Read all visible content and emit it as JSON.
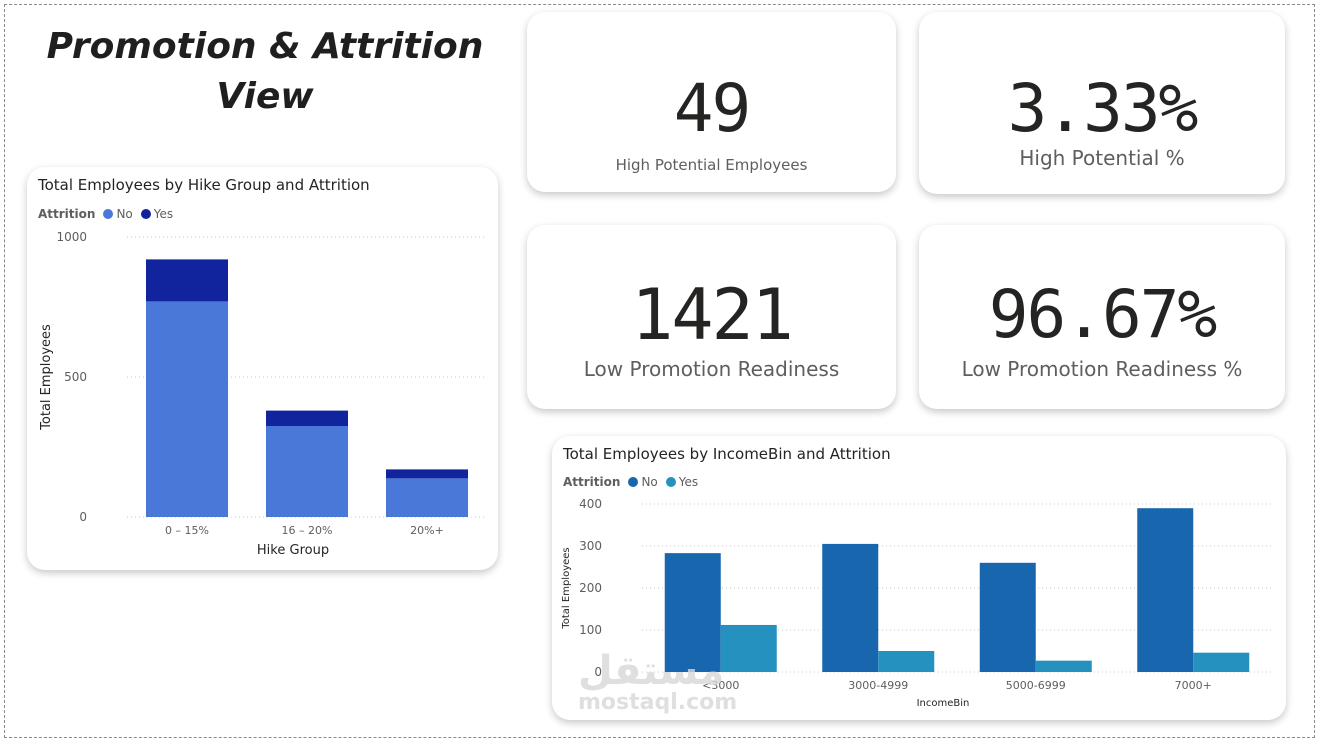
{
  "page": {
    "title_line1": "Promotion & Attrition",
    "title_line2": "View"
  },
  "kpis": [
    {
      "value": "49",
      "label": "High Potential Employees"
    },
    {
      "value": "3.33%",
      "label": "High Potential %"
    },
    {
      "value": "1421",
      "label": "Low Promotion Readiness"
    },
    {
      "value": "96.67%",
      "label": "Low Promotion Readiness %"
    }
  ],
  "hike_chart": {
    "title": "Total Employees by Hike Group and Attrition",
    "legend_title": "Attrition",
    "legend": [
      {
        "name": "No",
        "color": "#4a78d8"
      },
      {
        "name": "Yes",
        "color": "#12239e"
      }
    ]
  },
  "income_chart": {
    "title": "Total Employees by IncomeBin and Attrition",
    "legend_title": "Attrition",
    "legend": [
      {
        "name": "No",
        "color": "#1866ae"
      },
      {
        "name": "Yes",
        "color": "#2591bf"
      }
    ]
  },
  "watermark": {
    "arabic": "مستقل",
    "latin": "mostaql.com"
  },
  "chart_data": [
    {
      "type": "bar",
      "stacked": true,
      "title": "Total Employees by Hike Group and Attrition",
      "xlabel": "Hike Group",
      "ylabel": "Total Employees",
      "categories": [
        "0 – 15%",
        "16 – 20%",
        "20%+"
      ],
      "series": [
        {
          "name": "No",
          "values": [
            770,
            325,
            138
          ],
          "color": "#4a78d8"
        },
        {
          "name": "Yes",
          "values": [
            150,
            55,
            32
          ],
          "color": "#12239e"
        }
      ],
      "ylim": [
        0,
        1000
      ],
      "yticks": [
        0,
        500,
        1000
      ],
      "grid": true,
      "legend": "top-left"
    },
    {
      "type": "bar",
      "stacked": false,
      "title": "Total Employees by IncomeBin and Attrition",
      "xlabel": "IncomeBin",
      "ylabel": "Total Employees",
      "categories": [
        "<3000",
        "3000-4999",
        "5000-6999",
        "7000+"
      ],
      "series": [
        {
          "name": "No",
          "values": [
            283,
            305,
            260,
            390
          ],
          "color": "#1866ae"
        },
        {
          "name": "Yes",
          "values": [
            112,
            50,
            27,
            46
          ],
          "color": "#2591bf"
        }
      ],
      "ylim": [
        0,
        400
      ],
      "yticks": [
        0,
        100,
        200,
        300,
        400
      ],
      "grid": true,
      "legend": "top-left"
    }
  ]
}
